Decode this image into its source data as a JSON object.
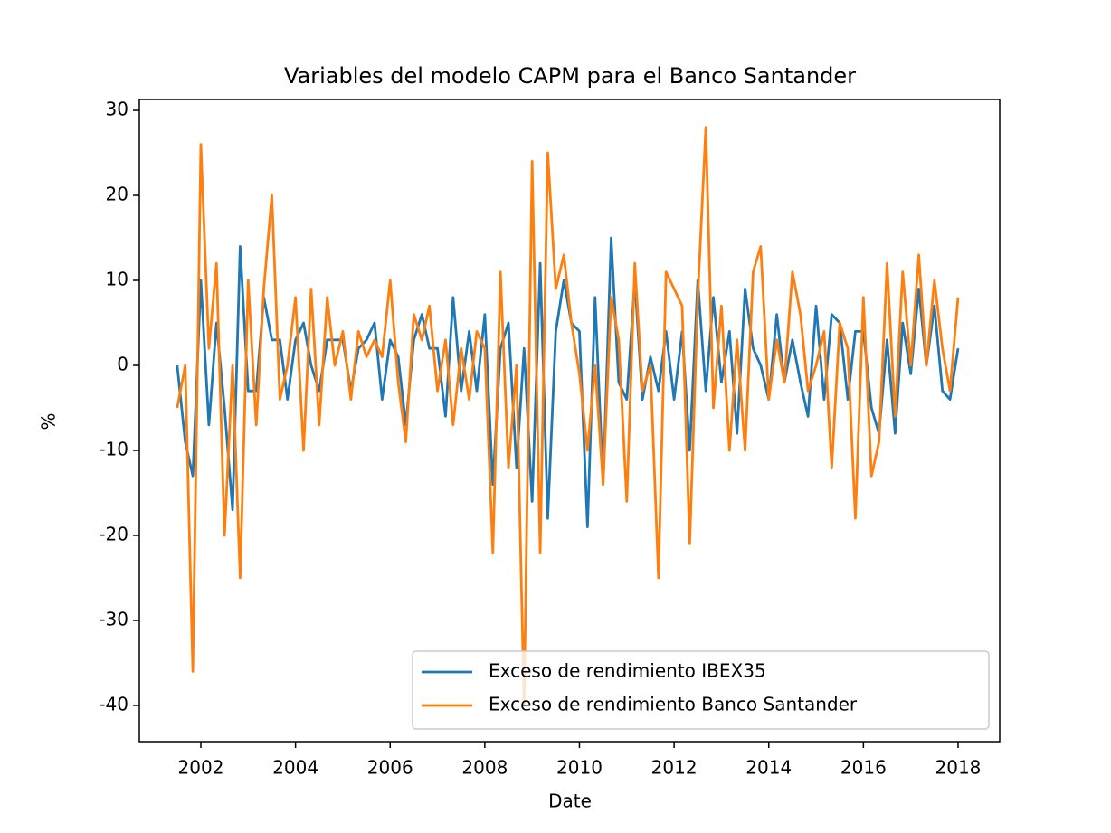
{
  "chart_data": {
    "type": "line",
    "title": "Variables del modelo CAPM para el Banco Santander",
    "xlabel": "Date",
    "ylabel": "%",
    "x": [
      2001.5,
      2001.67,
      2001.83,
      2002,
      2002.17,
      2002.33,
      2002.5,
      2002.67,
      2002.83,
      2003,
      2003.17,
      2003.33,
      2003.5,
      2003.67,
      2003.83,
      2004,
      2004.17,
      2004.33,
      2004.5,
      2004.67,
      2004.83,
      2005,
      2005.17,
      2005.33,
      2005.5,
      2005.67,
      2005.83,
      2006,
      2006.17,
      2006.33,
      2006.5,
      2006.67,
      2006.83,
      2007,
      2007.17,
      2007.33,
      2007.5,
      2007.67,
      2007.83,
      2008,
      2008.17,
      2008.33,
      2008.5,
      2008.67,
      2008.83,
      2009,
      2009.17,
      2009.33,
      2009.5,
      2009.67,
      2009.83,
      2010,
      2010.17,
      2010.33,
      2010.5,
      2010.67,
      2010.83,
      2011,
      2011.17,
      2011.33,
      2011.5,
      2011.67,
      2011.83,
      2012,
      2012.17,
      2012.33,
      2012.5,
      2012.67,
      2012.83,
      2013,
      2013.17,
      2013.33,
      2013.5,
      2013.67,
      2013.83,
      2014,
      2014.17,
      2014.33,
      2014.5,
      2014.67,
      2014.83,
      2015,
      2015.17,
      2015.33,
      2015.5,
      2015.67,
      2015.83,
      2016,
      2016.17,
      2016.33,
      2016.5,
      2016.67,
      2016.83,
      2017,
      2017.17,
      2017.33,
      2017.5,
      2017.67,
      2017.83,
      2018
    ],
    "series": [
      {
        "name": "Exceso de rendimiento IBEX35",
        "color": "#1f77b4",
        "values": [
          0,
          -9,
          -13,
          10,
          -7,
          5,
          -5,
          -17,
          14,
          -3,
          -3,
          8,
          3,
          3,
          -4,
          3,
          5,
          0,
          -3,
          3,
          3,
          3,
          -3,
          2,
          3,
          5,
          -4,
          3,
          1,
          -7,
          3,
          6,
          2,
          2,
          -6,
          8,
          -3,
          4,
          -3,
          6,
          -14,
          2,
          5,
          -12,
          2,
          -16,
          12,
          -18,
          4,
          10,
          5,
          4,
          -19,
          8,
          -14,
          15,
          -2,
          -4,
          10,
          -4,
          1,
          -3,
          4,
          -4,
          4,
          -10,
          10,
          -3,
          8,
          -2,
          4,
          -8,
          9,
          2,
          0,
          -4,
          6,
          -2,
          3,
          -2,
          -6,
          7,
          -4,
          6,
          5,
          -4,
          4,
          4,
          -5,
          -8,
          3,
          -8,
          5,
          -1,
          9,
          0,
          7,
          -3,
          -4,
          2
        ]
      },
      {
        "name": "Exceso de rendimiento Banco Santander",
        "color": "#ff7f0e",
        "values": [
          -5,
          0,
          -36,
          26,
          2,
          12,
          -20,
          0,
          -25,
          10,
          -7,
          9,
          20,
          -4,
          0,
          8,
          -10,
          9,
          -7,
          8,
          0,
          4,
          -4,
          4,
          1,
          3,
          1,
          10,
          -2,
          -9,
          6,
          3,
          7,
          -3,
          3,
          -7,
          2,
          -4,
          4,
          2,
          -22,
          11,
          -12,
          0,
          -40,
          24,
          -22,
          25,
          9,
          13,
          5,
          -1,
          -10,
          0,
          -14,
          8,
          3,
          -16,
          12,
          -3,
          0,
          -25,
          11,
          9,
          7,
          -21,
          8,
          28,
          -5,
          7,
          -10,
          3,
          -10,
          11,
          14,
          -4,
          3,
          -2,
          11,
          6,
          -3,
          0,
          4,
          -12,
          5,
          2,
          -18,
          8,
          -13,
          -9,
          12,
          -6,
          11,
          0,
          13,
          0,
          10,
          2,
          -3,
          8
        ]
      }
    ],
    "xlim": [
      2000.7,
      2018.88
    ],
    "xticks": [
      2002,
      2004,
      2006,
      2008,
      2010,
      2012,
      2014,
      2016,
      2018
    ],
    "ylim": [
      -44.26,
      31.28
    ],
    "yticks": [
      -40,
      -30,
      -20,
      -10,
      0,
      10,
      20,
      30
    ],
    "legend": "lower right"
  }
}
